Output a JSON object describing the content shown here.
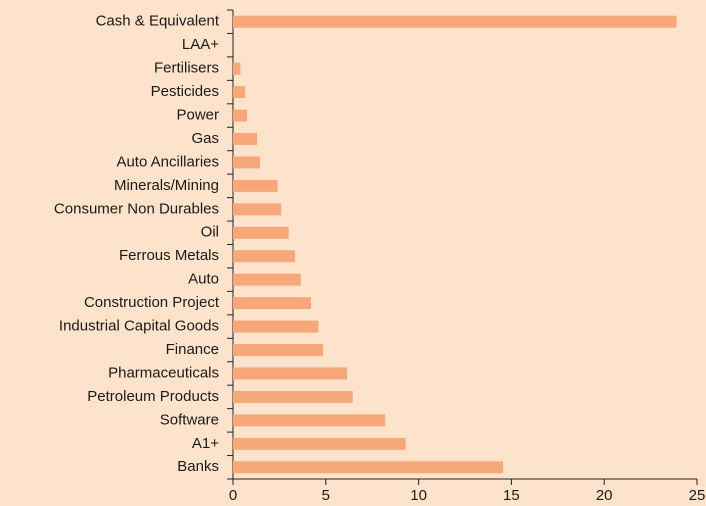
{
  "chart_data": {
    "type": "bar",
    "orientation": "horizontal",
    "categories": [
      "Cash & Equivalent",
      "LAA+",
      "Fertilisers",
      "Pesticides",
      "Power",
      "Gas",
      "Auto Ancillaries",
      "Minerals/Mining",
      "Consumer Non Durables",
      "Oil",
      "Ferrous Metals",
      "Auto",
      "Construction Project",
      "Industrial Capital Goods",
      "Finance",
      "Pharmaceuticals",
      "Petroleum Products",
      "Software",
      "A1+",
      "Banks"
    ],
    "values": [
      23.9,
      0,
      0.4,
      0.65,
      0.75,
      1.3,
      1.45,
      2.4,
      2.6,
      3.0,
      3.35,
      3.65,
      4.2,
      4.6,
      4.85,
      6.15,
      6.45,
      8.2,
      9.3,
      14.55
    ],
    "color": "#f7a878",
    "xlim": [
      0,
      25
    ],
    "xticks": [
      0,
      5,
      10,
      15,
      20,
      25
    ]
  }
}
